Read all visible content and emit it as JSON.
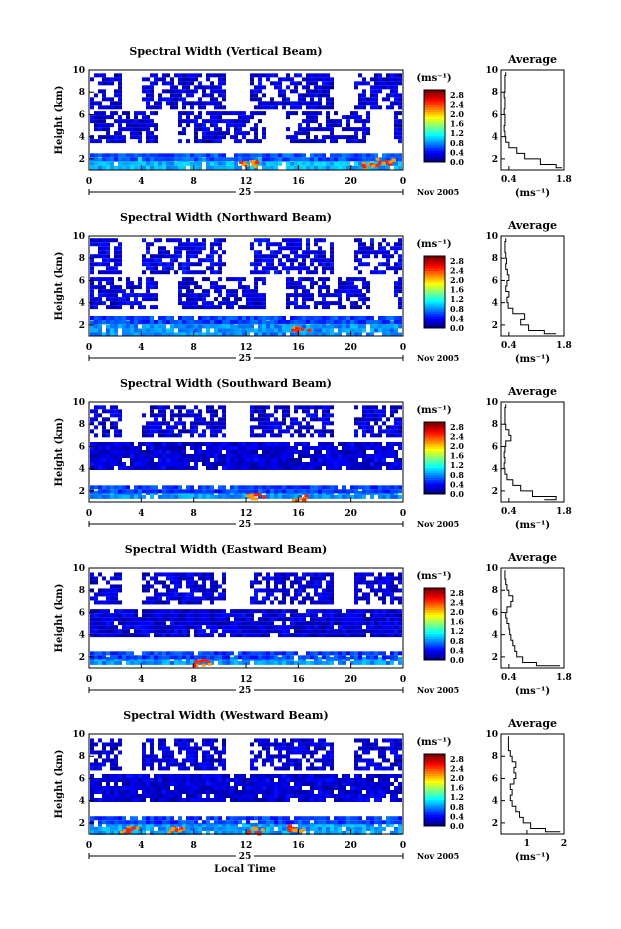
{
  "figure": {
    "xlabel": "Local Time",
    "date_month": "Nov 2005",
    "date_day": "25",
    "avg_title": "Average",
    "unit_label": "(ms⁻¹)"
  },
  "chart_data": [
    {
      "type": "heatmap",
      "title": "Spectral Width (Vertical Beam)",
      "xlabel": "",
      "ylabel": "Height (km)",
      "xlim": [
        0,
        24
      ],
      "ylim": [
        1,
        10
      ],
      "xticks": [
        "0",
        "4",
        "8",
        "12",
        "16",
        "20",
        "0"
      ],
      "yticks": [
        "2",
        "4",
        "6",
        "8",
        "10"
      ],
      "colorbar": {
        "label": "(ms⁻¹)",
        "ticks": [
          "0.0",
          "0.4",
          "0.8",
          "1.2",
          "1.6",
          "2.0",
          "2.4",
          "2.8"
        ],
        "range": [
          0,
          3.0
        ]
      },
      "bands": [
        {
          "y": [
            1.3,
            2.1
          ],
          "level": 0.9,
          "dense": true
        },
        {
          "y": [
            2.1,
            2.5
          ],
          "level": 0.6,
          "dense": true
        },
        {
          "y": [
            3.6,
            6.3
          ],
          "level": 0.2,
          "dense": false
        },
        {
          "y": [
            6.8,
            9.7
          ],
          "level": 0.2,
          "dense": false
        }
      ],
      "hot": [
        {
          "x": 12,
          "y": 1.7
        },
        {
          "x": 21.3,
          "y": 1.5
        },
        {
          "x": 22.5,
          "y": 1.9
        }
      ],
      "average": {
        "title": "Average",
        "xticks": [
          "0.4",
          "1.8"
        ],
        "xlim": [
          0.2,
          1.8
        ],
        "xlabel": "(ms⁻¹)",
        "h": [
          1.2,
          1.5,
          2.0,
          2.5,
          3.0,
          3.5,
          4.0,
          4.5,
          5.0,
          5.5,
          6.0,
          6.5,
          7.0,
          7.5,
          8.0,
          8.5,
          9.0,
          9.5,
          9.8
        ],
        "v": [
          1.75,
          1.6,
          1.2,
          0.8,
          0.6,
          0.4,
          0.32,
          0.3,
          0.28,
          0.3,
          0.3,
          0.28,
          0.3,
          0.3,
          0.28,
          0.3,
          0.3,
          0.3,
          0.32
        ]
      }
    },
    {
      "type": "heatmap",
      "title": "Spectral Width (Northward Beam)",
      "xlabel": "",
      "ylabel": "Height (km)",
      "xlim": [
        0,
        24
      ],
      "ylim": [
        1,
        10
      ],
      "xticks": [
        "0",
        "4",
        "8",
        "12",
        "16",
        "20",
        "0"
      ],
      "yticks": [
        "2",
        "4",
        "6",
        "8",
        "10"
      ],
      "colorbar": {
        "label": "(ms⁻¹)",
        "ticks": [
          "0.0",
          "0.4",
          "0.8",
          "1.2",
          "1.6",
          "2.0",
          "2.4",
          "2.8"
        ],
        "range": [
          0,
          3.0
        ]
      },
      "bands": [
        {
          "y": [
            1.3,
            2.4
          ],
          "level": 0.8,
          "dense": true
        },
        {
          "y": [
            2.4,
            2.8
          ],
          "level": 0.5,
          "dense": true
        },
        {
          "y": [
            3.6,
            6.3
          ],
          "level": 0.2,
          "dense": false
        },
        {
          "y": [
            6.8,
            9.8
          ],
          "level": 0.25,
          "dense": false
        }
      ],
      "hot": [
        {
          "x": 16,
          "y": 1.8
        }
      ],
      "average": {
        "title": "Average",
        "xticks": [
          "0.4",
          "1.8"
        ],
        "xlim": [
          0.2,
          1.8
        ],
        "xlabel": "(ms⁻¹)",
        "h": [
          1.2,
          1.5,
          2.0,
          2.5,
          3.0,
          3.5,
          4.0,
          4.5,
          5.0,
          5.5,
          6.0,
          6.5,
          7.0,
          7.5,
          8.0,
          8.5,
          9.0,
          9.5,
          9.8
        ],
        "v": [
          1.6,
          1.3,
          0.9,
          0.7,
          0.8,
          0.5,
          0.38,
          0.35,
          0.4,
          0.32,
          0.35,
          0.4,
          0.36,
          0.32,
          0.34,
          0.32,
          0.3,
          0.3,
          0.32
        ]
      }
    },
    {
      "type": "heatmap",
      "title": "Spectral Width (Southward Beam)",
      "xlabel": "",
      "ylabel": "Height (km)",
      "xlim": [
        0,
        24
      ],
      "ylim": [
        1,
        10
      ],
      "xticks": [
        "0",
        "4",
        "8",
        "12",
        "16",
        "20",
        "0"
      ],
      "yticks": [
        "2",
        "4",
        "6",
        "8",
        "10"
      ],
      "colorbar": {
        "label": "(ms⁻¹)",
        "ticks": [
          "0.0",
          "0.4",
          "0.8",
          "1.2",
          "1.6",
          "2.0",
          "2.4",
          "2.8"
        ],
        "range": [
          0,
          3.0
        ]
      },
      "bands": [
        {
          "y": [
            1.3,
            2.0
          ],
          "level": 0.8,
          "dense": true
        },
        {
          "y": [
            2.0,
            2.5
          ],
          "level": 0.5,
          "dense": true
        },
        {
          "y": [
            3.9,
            6.4
          ],
          "level": 0.2,
          "dense": true
        },
        {
          "y": [
            6.9,
            9.7
          ],
          "level": 0.2,
          "dense": false
        }
      ],
      "hot": [
        {
          "x": 12.5,
          "y": 1.6
        },
        {
          "x": 15.8,
          "y": 1.5
        }
      ],
      "average": {
        "title": "Average",
        "xticks": [
          "0.4",
          "1.8"
        ],
        "xlim": [
          0.2,
          1.8
        ],
        "xlabel": "(ms⁻¹)",
        "h": [
          1.2,
          1.5,
          2.0,
          2.5,
          3.0,
          3.5,
          4.0,
          4.5,
          5.0,
          5.5,
          6.0,
          6.5,
          7.0,
          7.5,
          8.0,
          8.5,
          9.0,
          9.5,
          9.8
        ],
        "v": [
          1.3,
          1.6,
          1.0,
          0.7,
          0.5,
          0.35,
          0.3,
          0.28,
          0.3,
          0.28,
          0.3,
          0.32,
          0.45,
          0.4,
          0.32,
          0.3,
          0.3,
          0.3,
          0.32
        ]
      }
    },
    {
      "type": "heatmap",
      "title": "Spectral Width (Eastward Beam)",
      "xlabel": "",
      "ylabel": "Height (km)",
      "xlim": [
        0,
        24
      ],
      "ylim": [
        1,
        10
      ],
      "xticks": [
        "0",
        "4",
        "8",
        "12",
        "16",
        "20",
        "0"
      ],
      "yticks": [
        "2",
        "4",
        "6",
        "8",
        "10"
      ],
      "colorbar": {
        "label": "(ms⁻¹)",
        "ticks": [
          "0.0",
          "0.4",
          "0.8",
          "1.2",
          "1.6",
          "2.0",
          "2.4",
          "2.8"
        ],
        "range": [
          0,
          3.0
        ]
      },
      "bands": [
        {
          "y": [
            1.3,
            2.0
          ],
          "level": 0.8,
          "dense": true
        },
        {
          "y": [
            2.0,
            2.5
          ],
          "level": 0.55,
          "dense": true
        },
        {
          "y": [
            4.0,
            6.3
          ],
          "level": 0.2,
          "dense": true
        },
        {
          "y": [
            6.8,
            9.6
          ],
          "level": 0.2,
          "dense": false
        }
      ],
      "hot": [
        {
          "x": 8.5,
          "y": 1.6
        }
      ],
      "average": {
        "title": "Average",
        "xticks": [
          "0.4",
          "1.8"
        ],
        "xlim": [
          0.2,
          1.8
        ],
        "xlabel": "(ms⁻¹)",
        "h": [
          1.2,
          1.5,
          2.0,
          2.5,
          3.0,
          3.5,
          4.0,
          4.5,
          5.0,
          5.5,
          6.0,
          6.5,
          7.0,
          7.5,
          8.0,
          8.5,
          9.0,
          9.5,
          9.8
        ],
        "v": [
          1.7,
          1.1,
          0.75,
          0.6,
          0.55,
          0.5,
          0.45,
          0.42,
          0.4,
          0.35,
          0.32,
          0.35,
          0.45,
          0.5,
          0.4,
          0.35,
          0.32,
          0.3,
          0.3
        ]
      }
    },
    {
      "type": "heatmap",
      "title": "Spectral Width (Westward Beam)",
      "xlabel": "Local Time",
      "ylabel": "Height (km)",
      "xlim": [
        0,
        24
      ],
      "ylim": [
        1,
        10
      ],
      "xticks": [
        "0",
        "4",
        "8",
        "12",
        "16",
        "20",
        "0"
      ],
      "yticks": [
        "2",
        "4",
        "6",
        "8",
        "10"
      ],
      "colorbar": {
        "label": "(ms⁻¹)",
        "ticks": [
          "0.0",
          "0.4",
          "0.8",
          "1.2",
          "1.6",
          "2.0",
          "2.4",
          "2.8"
        ],
        "range": [
          0,
          3.0
        ]
      },
      "bands": [
        {
          "y": [
            1.2,
            2.0
          ],
          "level": 0.85,
          "dense": true
        },
        {
          "y": [
            2.0,
            2.6
          ],
          "level": 0.55,
          "dense": true
        },
        {
          "y": [
            4.0,
            6.4
          ],
          "level": 0.2,
          "dense": true
        },
        {
          "y": [
            6.9,
            9.6
          ],
          "level": 0.2,
          "dense": false
        }
      ],
      "hot": [
        {
          "x": 3,
          "y": 1.5
        },
        {
          "x": 6.5,
          "y": 1.5
        },
        {
          "x": 12.5,
          "y": 1.4
        },
        {
          "x": 15.5,
          "y": 1.6
        }
      ],
      "average": {
        "title": "Average",
        "xticks": [
          "1",
          "2"
        ],
        "xlim": [
          0.3,
          2.0
        ],
        "xlabel": "(ms⁻¹)",
        "h": [
          1.2,
          1.5,
          2.0,
          2.5,
          3.0,
          3.5,
          4.0,
          4.5,
          5.0,
          5.5,
          6.0,
          6.5,
          7.0,
          7.5,
          8.0,
          8.5,
          9.0,
          9.5,
          9.8
        ],
        "v": [
          1.9,
          1.5,
          1.1,
          0.9,
          0.8,
          0.7,
          0.6,
          0.55,
          0.6,
          0.55,
          0.65,
          0.7,
          0.65,
          0.7,
          0.6,
          0.55,
          0.5,
          0.5,
          0.5
        ]
      }
    }
  ]
}
